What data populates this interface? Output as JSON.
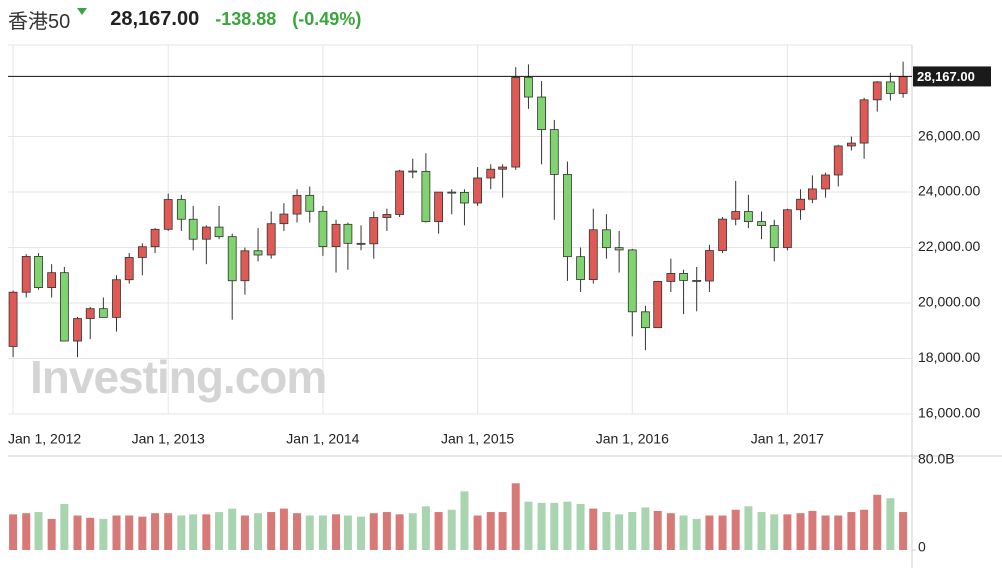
{
  "header": {
    "name": "香港50",
    "price": "28,167.00",
    "change": "-138.88",
    "change_pct": "(-0.49%)"
  },
  "chart_data": {
    "type": "candlestick",
    "watermark": "Investing.com",
    "x": [
      "2012-01-01",
      "2012-02-01",
      "2012-03-01",
      "2012-04-01",
      "2012-05-01",
      "2012-06-01",
      "2012-07-01",
      "2012-08-01",
      "2012-09-01",
      "2012-10-01",
      "2012-11-01",
      "2012-12-01",
      "2013-01-01",
      "2013-02-01",
      "2013-03-01",
      "2013-04-01",
      "2013-05-01",
      "2013-06-01",
      "2013-07-01",
      "2013-08-01",
      "2013-09-01",
      "2013-10-01",
      "2013-11-01",
      "2013-12-01",
      "2014-01-01",
      "2014-02-01",
      "2014-03-01",
      "2014-04-01",
      "2014-05-01",
      "2014-06-01",
      "2014-07-01",
      "2014-08-01",
      "2014-09-01",
      "2014-10-01",
      "2014-11-01",
      "2014-12-01",
      "2015-01-01",
      "2015-02-01",
      "2015-03-01",
      "2015-04-01",
      "2015-05-01",
      "2015-06-01",
      "2015-07-01",
      "2015-08-01",
      "2015-09-01",
      "2015-10-01",
      "2015-11-01",
      "2015-12-01",
      "2016-01-01",
      "2016-02-01",
      "2016-03-01",
      "2016-04-01",
      "2016-05-01",
      "2016-06-01",
      "2016-07-01",
      "2016-08-01",
      "2016-09-01",
      "2016-10-01",
      "2016-11-01",
      "2016-12-01",
      "2017-01-01",
      "2017-02-01",
      "2017-03-01",
      "2017-04-01",
      "2017-05-01",
      "2017-06-01",
      "2017-07-01",
      "2017-08-01",
      "2017-09-01",
      "2017-10-01"
    ],
    "open": [
      18434,
      20390,
      21680,
      20556,
      21094,
      18630,
      19441,
      19796,
      19482,
      20840,
      21642,
      22030,
      22657,
      23730,
      23020,
      22300,
      22737,
      22392,
      20803,
      21883,
      21731,
      22859,
      23206,
      23881,
      23306,
      22035,
      22837,
      22151,
      22134,
      23082,
      23191,
      24757,
      24742,
      22933,
      23998,
      23987,
      23605,
      24507,
      24823,
      24901,
      28133,
      27424,
      26250,
      24636,
      21671,
      20846,
      22640,
      21996,
      21914,
      19683,
      19112,
      20777,
      21067,
      20815,
      20794,
      21891,
      23023,
      23297,
      22935,
      22790,
      22001,
      23361,
      23741,
      24112,
      24615,
      25661,
      25765,
      27324,
      27970,
      27554
    ],
    "high": [
      20450,
      21760,
      21800,
      21400,
      21300,
      19500,
      19860,
      20200,
      21000,
      21800,
      22150,
      22700,
      23944,
      23900,
      23500,
      22800,
      23500,
      22500,
      22000,
      22700,
      23300,
      23600,
      24100,
      24200,
      23500,
      23000,
      22900,
      22800,
      23300,
      23400,
      24800,
      25200,
      25400,
      23900,
      24100,
      24100,
      24900,
      25000,
      25000,
      28500,
      28600,
      28000,
      26600,
      25100,
      22000,
      23400,
      23200,
      22600,
      21950,
      19900,
      20800,
      21600,
      21200,
      21300,
      22100,
      23100,
      24400,
      23900,
      23300,
      23000,
      23400,
      24100,
      24600,
      24700,
      25700,
      26000,
      27400,
      28000,
      28300,
      28700
    ],
    "low": [
      18056,
      20200,
      20480,
      20200,
      18700,
      18050,
      18700,
      19500,
      18970,
      20700,
      21000,
      21800,
      22600,
      22600,
      21900,
      21400,
      22300,
      19400,
      20300,
      21500,
      21600,
      22600,
      22900,
      22900,
      21700,
      21100,
      21200,
      21900,
      21600,
      22600,
      23100,
      24500,
      22900,
      22500,
      23200,
      22800,
      23500,
      24100,
      23800,
      24800,
      27000,
      25000,
      23000,
      20800,
      20400,
      20700,
      21600,
      21100,
      18800,
      18300,
      19100,
      20400,
      19600,
      19700,
      20400,
      21800,
      22800,
      22700,
      22300,
      21500,
      21900,
      23000,
      23600,
      23800,
      24200,
      25500,
      25200,
      26900,
      27300,
      27400
    ],
    "close": [
      20390,
      21680,
      20556,
      21094,
      18630,
      19441,
      19796,
      19482,
      20840,
      21642,
      22030,
      22657,
      23730,
      23020,
      22300,
      22737,
      22392,
      20803,
      21883,
      21731,
      22859,
      23206,
      23881,
      23306,
      22035,
      22837,
      22151,
      22134,
      23082,
      23191,
      24757,
      24742,
      22933,
      23998,
      23987,
      23605,
      24507,
      24823,
      24901,
      28133,
      27424,
      26250,
      24636,
      21671,
      20846,
      22640,
      21996,
      21914,
      19683,
      19112,
      20777,
      21067,
      20815,
      20794,
      21891,
      23023,
      23297,
      22935,
      22790,
      22001,
      23361,
      23741,
      24112,
      24615,
      25661,
      25765,
      27324,
      27970,
      27554,
      28167
    ],
    "volume": [
      31000000000,
      32000000000,
      33000000000,
      27000000000,
      40000000000,
      30000000000,
      28000000000,
      27000000000,
      30000000000,
      30000000000,
      29000000000,
      32000000000,
      32000000000,
      30000000000,
      31000000000,
      31000000000,
      33000000000,
      36000000000,
      30000000000,
      32000000000,
      33000000000,
      36000000000,
      32000000000,
      30000000000,
      30000000000,
      31000000000,
      30000000000,
      29000000000,
      32000000000,
      33000000000,
      31000000000,
      32000000000,
      38000000000,
      33000000000,
      35000000000,
      51000000000,
      30000000000,
      33000000000,
      33000000000,
      58000000000,
      42000000000,
      41000000000,
      41000000000,
      42000000000,
      40000000000,
      36000000000,
      33000000000,
      31000000000,
      33000000000,
      37000000000,
      34000000000,
      32000000000,
      30000000000,
      27000000000,
      30000000000,
      30000000000,
      35000000000,
      38000000000,
      33000000000,
      31000000000,
      31000000000,
      32000000000,
      34000000000,
      30000000000,
      30000000000,
      33000000000,
      35000000000,
      48000000000,
      45000000000,
      33000000000
    ],
    "up_color": "#e05a55",
    "down_color": "#7fd46f",
    "volume_up_color": "#d77976",
    "volume_down_color": "#a9d4b0",
    "xlim": [
      "2011-12-20",
      "2017-10-22"
    ],
    "xticks": [
      {
        "value": "2012-01-01",
        "label": "Jan 1, 2012"
      },
      {
        "value": "2013-01-01",
        "label": "Jan 1, 2013"
      },
      {
        "value": "2014-01-01",
        "label": "Jan 1, 2014"
      },
      {
        "value": "2015-01-01",
        "label": "Jan 1, 2015"
      },
      {
        "value": "2016-01-01",
        "label": "Jan 1, 2016"
      },
      {
        "value": "2017-01-01",
        "label": "Jan 1, 2017"
      }
    ],
    "ylim": [
      16000,
      29300
    ],
    "yticks": [
      {
        "value": 16000,
        "label": "16,000.00"
      },
      {
        "value": 18000,
        "label": "18,000.00"
      },
      {
        "value": 20000,
        "label": "20,000.00"
      },
      {
        "value": 22000,
        "label": "22,000.00"
      },
      {
        "value": 24000,
        "label": "24,000.00"
      },
      {
        "value": 26000,
        "label": "26,000.00"
      }
    ],
    "last_price": {
      "value": 28167,
      "label": "28,167.00"
    },
    "vlim": [
      0,
      80000000000
    ],
    "vticks": [
      0,
      {
        "value": 80000000000,
        "label": "80.0B"
      }
    ],
    "grid": true
  }
}
